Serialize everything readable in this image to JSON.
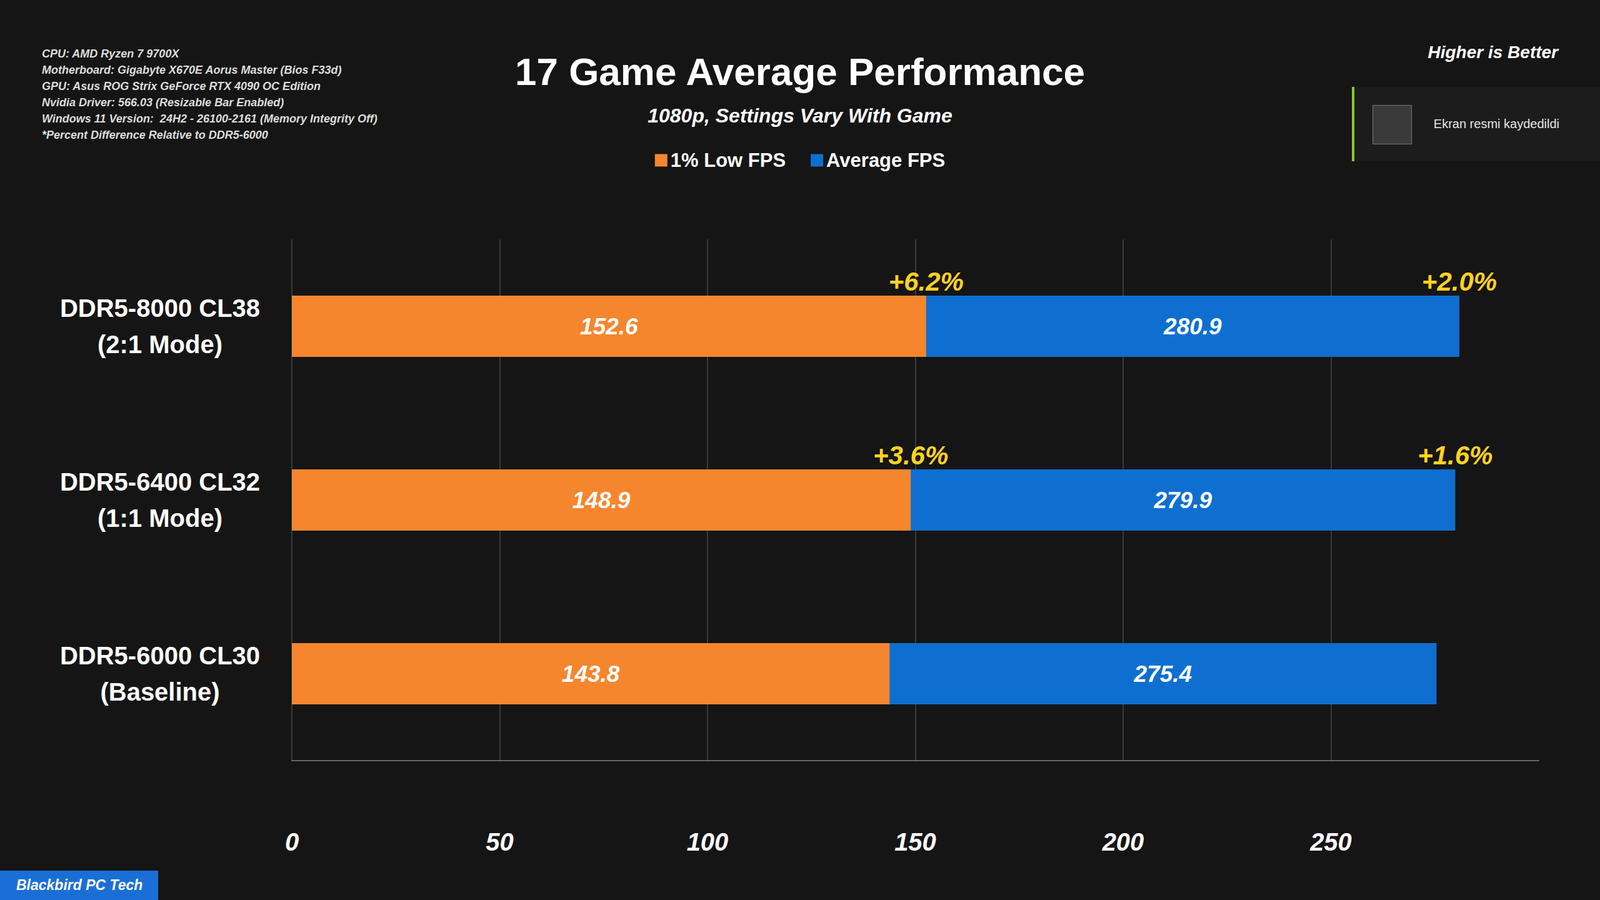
{
  "chart_data": {
    "type": "bar",
    "orientation": "horizontal",
    "title": "17 Game Average Performance",
    "subtitle": "1080p, Settings Vary With Game",
    "note": "Higher is Better",
    "specs": [
      "CPU: AMD Ryzen 7 9700X",
      "Motherboard: Gigabyte X670E Aorus Master (Bios F33d)",
      "GPU: Asus ROG Strix GeForce RTX 4090 OC Edition",
      "Nvidia Driver: 566.03 (Resizable Bar Enabled)",
      "Windows 11 Version:  24H2 - 26100-2161 (Memory Integrity Off)",
      "*Percent Difference Relative to DDR5-6000"
    ],
    "source": "Blackbird PC Tech",
    "notification": "Ekran resmi kaydedildi",
    "categories": [
      "DDR5-8000 CL38 (2:1 Mode)",
      "DDR5-6400 CL32 (1:1 Mode)",
      "DDR5-6000 CL30 (Baseline)"
    ],
    "series": [
      {
        "name": "1% Low FPS",
        "color": "#f5862e",
        "values": [
          152.6,
          148.9,
          143.8
        ],
        "annotations": [
          "+6.2%",
          "+3.6%",
          null
        ]
      },
      {
        "name": "Average FPS",
        "color": "#0e6fd0",
        "values": [
          280.9,
          279.9,
          275.4
        ],
        "annotations": [
          "+2.0%",
          "+1.6%",
          null
        ]
      }
    ],
    "xlim": [
      0,
      300
    ],
    "xticks": [
      0,
      50,
      100,
      150,
      200,
      250
    ],
    "grid": true,
    "legend": "top",
    "data_labels": true
  }
}
